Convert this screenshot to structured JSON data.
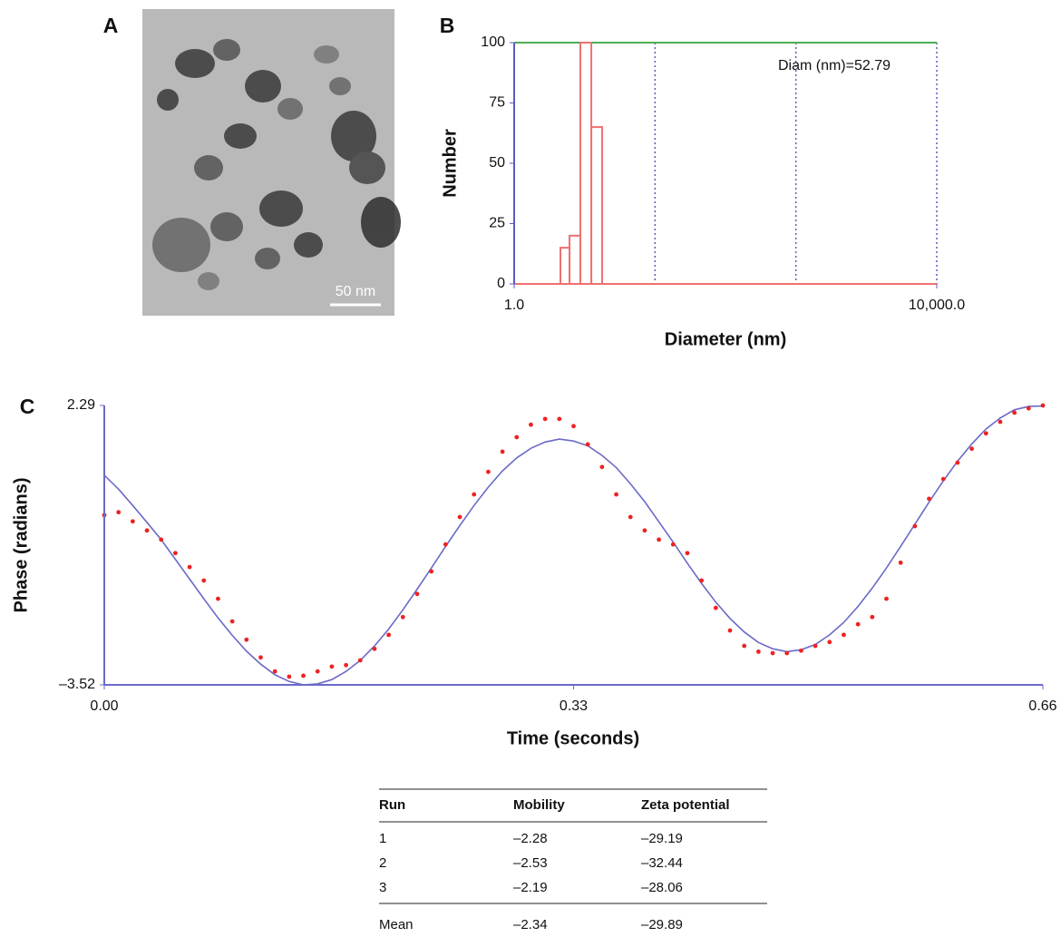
{
  "image": {
    "label": "A",
    "scale_bar": "50 nm"
  },
  "chart_data": [
    {
      "type": "histogram",
      "label": "B",
      "bins": [
        2.74,
        3.34,
        4.23,
        5.37,
        6.8
      ],
      "values": [
        15,
        20,
        100,
        65
      ],
      "color": "#f07070",
      "x_label": "Diameter (nm)",
      "y_label": "Number",
      "annotation": "Diam (nm)=52.79",
      "xlim": [
        1,
        10000
      ],
      "xscale": "log",
      "xticks": [
        {
          "value": 1,
          "label": "1.0"
        },
        {
          "value": 10000,
          "label": "10,000.0"
        }
      ],
      "xgrid": [
        21.54,
        464.16,
        10000
      ],
      "ylim": [
        0,
        100
      ],
      "yticks": [
        0,
        25,
        50,
        75,
        100
      ],
      "axis_color": "#5b5bc0",
      "top_line_color": "#4caf50"
    },
    {
      "type": "line",
      "label": "C",
      "x_label": "Time (seconds)",
      "y_label": "Phase (radians)",
      "x": [
        0,
        0.01,
        0.02,
        0.03,
        0.04,
        0.05,
        0.06,
        0.07,
        0.08,
        0.09,
        0.1,
        0.11,
        0.12,
        0.13,
        0.14,
        0.15,
        0.16,
        0.17,
        0.18,
        0.19,
        0.2,
        0.21,
        0.22,
        0.23,
        0.24,
        0.25,
        0.26,
        0.27,
        0.28,
        0.29,
        0.3,
        0.31,
        0.32,
        0.33,
        0.34,
        0.35,
        0.36,
        0.37,
        0.38,
        0.39,
        0.4,
        0.41,
        0.42,
        0.43,
        0.44,
        0.45,
        0.46,
        0.47,
        0.48,
        0.49,
        0.5,
        0.51,
        0.52,
        0.53,
        0.54,
        0.55,
        0.56,
        0.57,
        0.58,
        0.59,
        0.6,
        0.61,
        0.62,
        0.63,
        0.64,
        0.65,
        0.66
      ],
      "series": [
        {
          "style": "line",
          "color": "#6a6ac8",
          "values": [
            0.84,
            0.55,
            0.21,
            -0.14,
            -0.5,
            -0.91,
            -1.32,
            -1.73,
            -2.13,
            -2.49,
            -2.82,
            -3.09,
            -3.31,
            -3.45,
            -3.52,
            -3.5,
            -3.41,
            -3.24,
            -3.01,
            -2.71,
            -2.36,
            -1.96,
            -1.53,
            -1.09,
            -0.64,
            -0.21,
            0.21,
            0.59,
            0.93,
            1.2,
            1.4,
            1.53,
            1.59,
            1.55,
            1.45,
            1.25,
            1.0,
            0.66,
            0.29,
            -0.13,
            -0.55,
            -0.99,
            -1.41,
            -1.8,
            -2.14,
            -2.42,
            -2.64,
            -2.77,
            -2.83,
            -2.79,
            -2.68,
            -2.48,
            -2.22,
            -1.89,
            -1.51,
            -1.09,
            -0.64,
            -0.18,
            0.28,
            0.72,
            1.13,
            1.49,
            1.8,
            2.03,
            2.2,
            2.27,
            2.28
          ]
        },
        {
          "style": "dots",
          "color": "#ee2222",
          "values": [
            0.01,
            0.07,
            -0.12,
            -0.31,
            -0.5,
            -0.78,
            -1.07,
            -1.35,
            -1.73,
            -2.2,
            -2.58,
            -2.95,
            -3.24,
            -3.35,
            -3.33,
            -3.24,
            -3.14,
            -3.11,
            -3.01,
            -2.77,
            -2.48,
            -2.11,
            -1.63,
            -1.16,
            -0.6,
            -0.03,
            0.44,
            0.91,
            1.33,
            1.63,
            1.89,
            2.01,
            2.01,
            1.86,
            1.48,
            1.01,
            0.44,
            -0.03,
            -0.31,
            -0.5,
            -0.6,
            -0.78,
            -1.35,
            -1.92,
            -2.39,
            -2.71,
            -2.83,
            -2.86,
            -2.86,
            -2.81,
            -2.71,
            -2.63,
            -2.48,
            -2.26,
            -2.11,
            -1.73,
            -0.98,
            -0.22,
            0.35,
            0.76,
            1.1,
            1.39,
            1.71,
            1.95,
            2.14,
            2.23,
            2.29
          ]
        }
      ],
      "xlim": [
        0,
        0.66
      ],
      "xticks": [
        {
          "value": 0,
          "label": "0.00"
        },
        0.33,
        0.66
      ],
      "ylim": [
        -3.52,
        2.29
      ],
      "yticks": [
        {
          "value": -3.52,
          "label": "–3.52"
        },
        2.29
      ],
      "axis_color": "#6a6ac8"
    }
  ],
  "table": {
    "header": [
      "Run",
      "Mobility",
      "Zeta potential"
    ],
    "rows": [
      [
        "1",
        "–2.28",
        "–29.19"
      ],
      [
        "2",
        "–2.53",
        "–32.44"
      ],
      [
        "3",
        "–2.19",
        "–28.06"
      ]
    ],
    "footer": [
      "Mean",
      "–2.34",
      "–29.89"
    ]
  }
}
